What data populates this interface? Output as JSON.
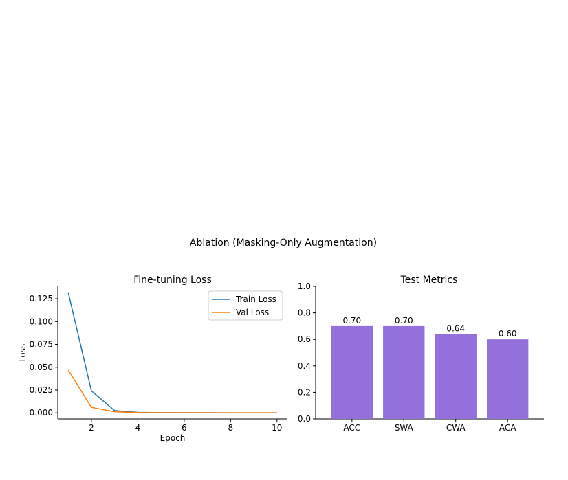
{
  "figure": {
    "suptitle": "Ablation (Masking-Only Augmentation)"
  },
  "chart_data": [
    {
      "type": "line",
      "title": "Fine-tuning Loss",
      "xlabel": "Epoch",
      "ylabel": "Loss",
      "x": [
        1,
        2,
        3,
        4,
        5,
        6,
        7,
        8,
        9,
        10
      ],
      "series": [
        {
          "name": "Train Loss",
          "color": "#1f77b4",
          "values": [
            0.132,
            0.024,
            0.0025,
            0.0005,
            0.0003,
            0.0002,
            0.0002,
            0.0001,
            0.0001,
            0.0001
          ]
        },
        {
          "name": "Val Loss",
          "color": "#ff7f0e",
          "values": [
            0.047,
            0.006,
            0.0012,
            0.0004,
            0.0002,
            0.0002,
            0.0001,
            0.0001,
            0.0001,
            0.0001
          ]
        }
      ],
      "xlim": [
        0.55,
        10.45
      ],
      "ylim": [
        -0.0066,
        0.1386
      ],
      "xticks": [
        2,
        4,
        6,
        8,
        10
      ],
      "yticks": [
        0.0,
        0.025,
        0.05,
        0.075,
        0.1,
        0.125
      ],
      "ytick_labels": [
        "0.000",
        "0.025",
        "0.050",
        "0.075",
        "0.100",
        "0.125"
      ],
      "legend": "top-right",
      "grid": false
    },
    {
      "type": "bar",
      "title": "Test Metrics",
      "categories": [
        "ACC",
        "SWA",
        "CWA",
        "ACA"
      ],
      "values": [
        0.7,
        0.7,
        0.64,
        0.6
      ],
      "value_labels": [
        "0.70",
        "0.70",
        "0.64",
        "0.60"
      ],
      "color": "#9370db",
      "ylim": [
        0,
        1.0
      ],
      "yticks": [
        0.0,
        0.2,
        0.4,
        0.6,
        0.8,
        1.0
      ],
      "ytick_labels": [
        "0.0",
        "0.2",
        "0.4",
        "0.6",
        "0.8",
        "1.0"
      ],
      "grid": false
    }
  ]
}
